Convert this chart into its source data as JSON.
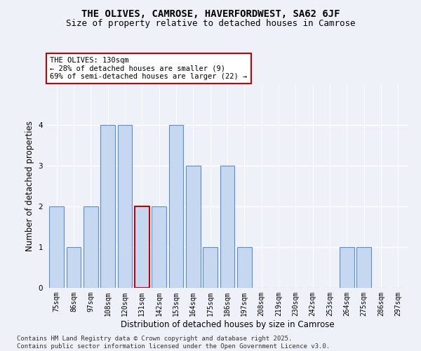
{
  "title": "THE OLIVES, CAMROSE, HAVERFORDWEST, SA62 6JF",
  "subtitle": "Size of property relative to detached houses in Camrose",
  "xlabel": "Distribution of detached houses by size in Camrose",
  "ylabel": "Number of detached properties",
  "categories": [
    "75sqm",
    "86sqm",
    "97sqm",
    "108sqm",
    "120sqm",
    "131sqm",
    "142sqm",
    "153sqm",
    "164sqm",
    "175sqm",
    "186sqm",
    "197sqm",
    "208sqm",
    "219sqm",
    "230sqm",
    "242sqm",
    "253sqm",
    "264sqm",
    "275sqm",
    "286sqm",
    "297sqm"
  ],
  "values": [
    2,
    1,
    2,
    4,
    4,
    2,
    2,
    4,
    3,
    1,
    3,
    1,
    0,
    0,
    0,
    0,
    0,
    1,
    1,
    0,
    0
  ],
  "highlight_index": 5,
  "bar_color": "#c5d8f0",
  "bar_edge_color": "#5b8dd4",
  "highlight_bar_edge_color": "#cc0000",
  "annotation_box_text": "THE OLIVES: 130sqm\n← 28% of detached houses are smaller (9)\n69% of semi-detached houses are larger (22) →",
  "annotation_box_color": "white",
  "annotation_box_edge_color": "#cc0000",
  "footer_text": "Contains HM Land Registry data © Crown copyright and database right 2025.\nContains public sector information licensed under the Open Government Licence v3.0.",
  "ylim": [
    0,
    5
  ],
  "yticks": [
    0,
    1,
    2,
    3,
    4
  ],
  "background_color": "#eef2f8",
  "grid_color": "white",
  "title_fontsize": 10,
  "subtitle_fontsize": 9,
  "axis_label_fontsize": 8.5,
  "tick_fontsize": 7,
  "annotation_fontsize": 7.5,
  "footer_fontsize": 6.5
}
